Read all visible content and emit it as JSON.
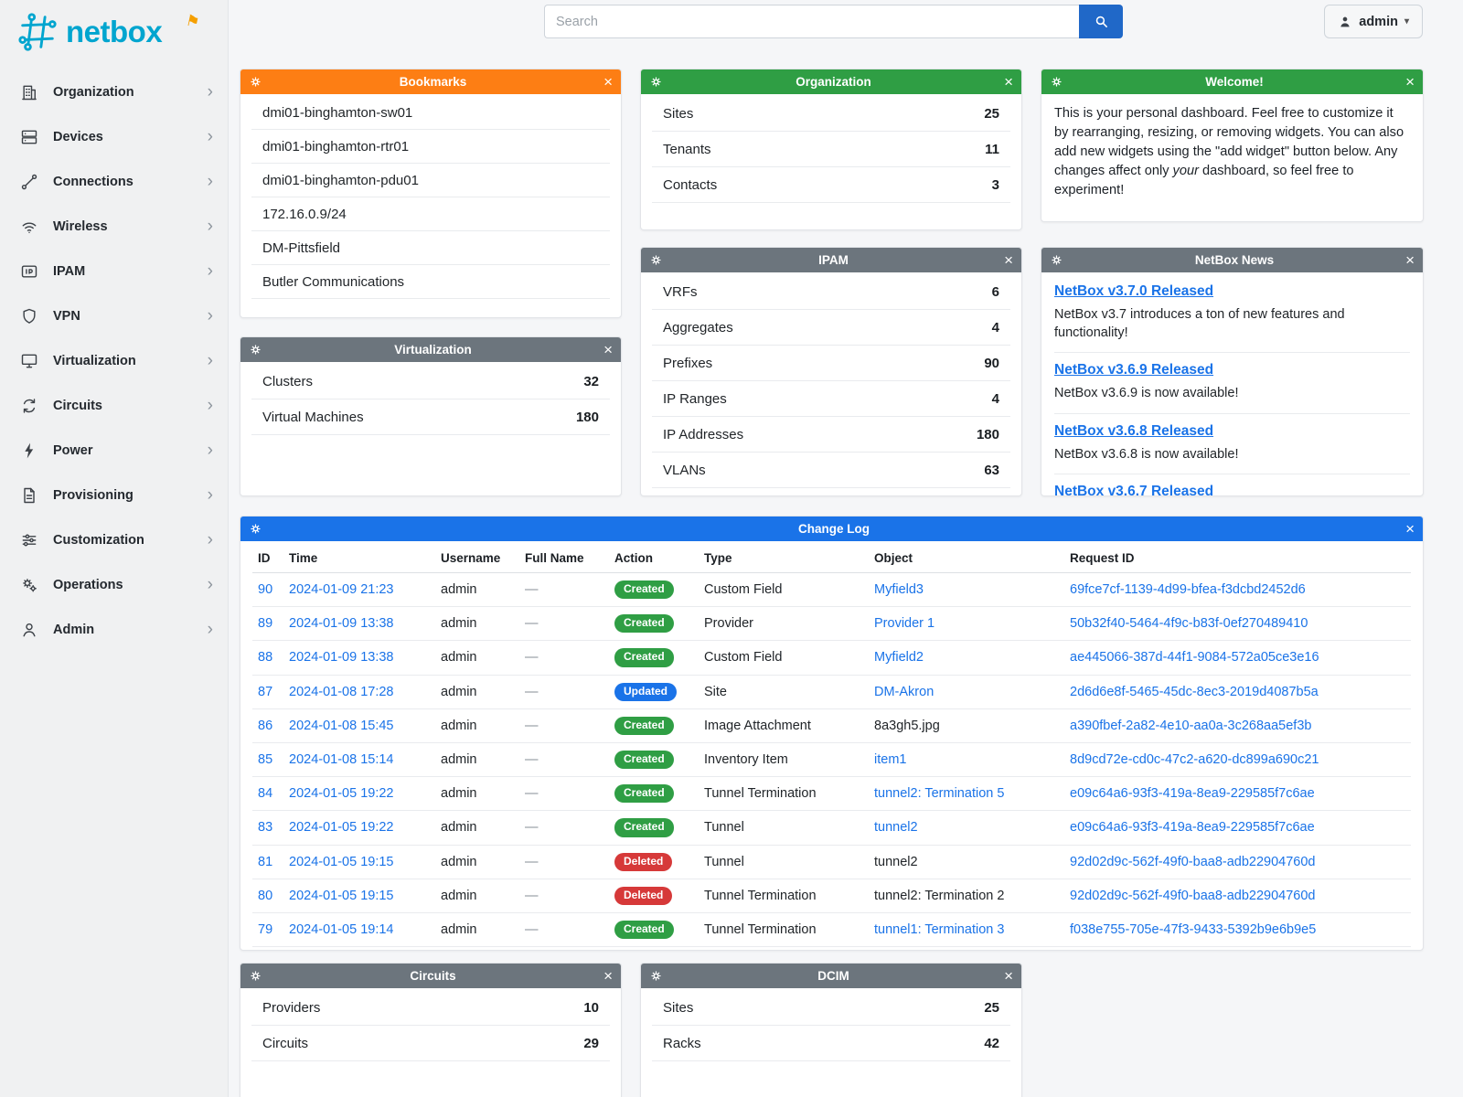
{
  "colors": {
    "brand_teal": "#00a5cf",
    "brand_orange": "#f59f00",
    "header_orange": "#fd7e14",
    "header_green": "#2f9e44",
    "header_gray": "#6c757d",
    "header_blue": "#1a73e8",
    "badge_created": "#2f9e44",
    "badge_updated": "#1a73e8",
    "badge_deleted": "#d63939",
    "link": "#1a73e8",
    "search_button": "#2068c8"
  },
  "brand": {
    "name": "netbox"
  },
  "topbar": {
    "search_placeholder": "Search",
    "user_label": "admin"
  },
  "sidebar": {
    "items": [
      {
        "label": "Organization",
        "icon": "building-icon"
      },
      {
        "label": "Devices",
        "icon": "server-icon"
      },
      {
        "label": "Connections",
        "icon": "cable-icon"
      },
      {
        "label": "Wireless",
        "icon": "wifi-icon"
      },
      {
        "label": "IPAM",
        "icon": "ip-card-icon"
      },
      {
        "label": "VPN",
        "icon": "vpn-shield-icon"
      },
      {
        "label": "Virtualization",
        "icon": "monitor-icon"
      },
      {
        "label": "Circuits",
        "icon": "loop-icon"
      },
      {
        "label": "Power",
        "icon": "lightning-icon"
      },
      {
        "label": "Provisioning",
        "icon": "document-icon"
      },
      {
        "label": "Customization",
        "icon": "sliders-icon"
      },
      {
        "label": "Operations",
        "icon": "gears-icon"
      },
      {
        "label": "Admin",
        "icon": "user-icon"
      }
    ]
  },
  "widgets": {
    "bookmarks": {
      "title": "Bookmarks",
      "items": [
        "dmi01-binghamton-sw01",
        "dmi01-binghamton-rtr01",
        "dmi01-binghamton-pdu01",
        "172.16.0.9/24",
        "DM-Pittsfield",
        "Butler Communications"
      ]
    },
    "organization": {
      "title": "Organization",
      "rows": [
        {
          "label": "Sites",
          "value": "25"
        },
        {
          "label": "Tenants",
          "value": "11"
        },
        {
          "label": "Contacts",
          "value": "3"
        }
      ]
    },
    "welcome": {
      "title": "Welcome!",
      "text_1": "This is your personal dashboard. Feel free to customize it by rearranging, resizing, or removing widgets. You can also add new widgets using the \"add widget\" button below. Any changes affect only ",
      "text_italic": "your",
      "text_2": " dashboard, so feel free to experiment!"
    },
    "virtualization": {
      "title": "Virtualization",
      "rows": [
        {
          "label": "Clusters",
          "value": "32"
        },
        {
          "label": "Virtual Machines",
          "value": "180"
        }
      ]
    },
    "ipam": {
      "title": "IPAM",
      "rows": [
        {
          "label": "VRFs",
          "value": "6"
        },
        {
          "label": "Aggregates",
          "value": "4"
        },
        {
          "label": "Prefixes",
          "value": "90"
        },
        {
          "label": "IP Ranges",
          "value": "4"
        },
        {
          "label": "IP Addresses",
          "value": "180"
        },
        {
          "label": "VLANs",
          "value": "63"
        }
      ]
    },
    "news": {
      "title": "NetBox News",
      "items": [
        {
          "headline": "NetBox v3.7.0 Released",
          "text": "NetBox v3.7 introduces a ton of new features and functionality!"
        },
        {
          "headline": "NetBox v3.6.9 Released",
          "text": "NetBox v3.6.9 is now available!"
        },
        {
          "headline": "NetBox v3.6.8 Released",
          "text": "NetBox v3.6.8 is now available!"
        },
        {
          "headline": "NetBox v3.6.7 Released",
          "text": ""
        }
      ]
    },
    "circuits": {
      "title": "Circuits",
      "rows": [
        {
          "label": "Providers",
          "value": "10"
        },
        {
          "label": "Circuits",
          "value": "29"
        }
      ]
    },
    "dcim": {
      "title": "DCIM",
      "rows": [
        {
          "label": "Sites",
          "value": "25"
        },
        {
          "label": "Racks",
          "value": "42"
        }
      ]
    }
  },
  "changelog": {
    "title": "Change Log",
    "columns": [
      "ID",
      "Time",
      "Username",
      "Full Name",
      "Action",
      "Type",
      "Object",
      "Request ID"
    ],
    "rows": [
      {
        "id": "90",
        "time": "2024-01-09 21:23",
        "username": "admin",
        "full_name": "—",
        "action": "Created",
        "type": "Custom Field",
        "object": "Myfield3",
        "object_link": true,
        "request_id": "69fce7cf-1139-4d99-bfea-f3dcbd2452d6"
      },
      {
        "id": "89",
        "time": "2024-01-09 13:38",
        "username": "admin",
        "full_name": "—",
        "action": "Created",
        "type": "Provider",
        "object": "Provider 1",
        "object_link": true,
        "request_id": "50b32f40-5464-4f9c-b83f-0ef270489410"
      },
      {
        "id": "88",
        "time": "2024-01-09 13:38",
        "username": "admin",
        "full_name": "—",
        "action": "Created",
        "type": "Custom Field",
        "object": "Myfield2",
        "object_link": true,
        "request_id": "ae445066-387d-44f1-9084-572a05ce3e16"
      },
      {
        "id": "87",
        "time": "2024-01-08 17:28",
        "username": "admin",
        "full_name": "—",
        "action": "Updated",
        "type": "Site",
        "object": "DM-Akron",
        "object_link": true,
        "request_id": "2d6d6e8f-5465-45dc-8ec3-2019d4087b5a"
      },
      {
        "id": "86",
        "time": "2024-01-08 15:45",
        "username": "admin",
        "full_name": "—",
        "action": "Created",
        "type": "Image Attachment",
        "object": "8a3gh5.jpg",
        "object_link": false,
        "request_id": "a390fbef-2a82-4e10-aa0a-3c268aa5ef3b"
      },
      {
        "id": "85",
        "time": "2024-01-08 15:14",
        "username": "admin",
        "full_name": "—",
        "action": "Created",
        "type": "Inventory Item",
        "object": "item1",
        "object_link": true,
        "request_id": "8d9cd72e-cd0c-47c2-a620-dc899a690c21"
      },
      {
        "id": "84",
        "time": "2024-01-05 19:22",
        "username": "admin",
        "full_name": "—",
        "action": "Created",
        "type": "Tunnel Termination",
        "object": "tunnel2: Termination 5",
        "object_link": true,
        "request_id": "e09c64a6-93f3-419a-8ea9-229585f7c6ae"
      },
      {
        "id": "83",
        "time": "2024-01-05 19:22",
        "username": "admin",
        "full_name": "—",
        "action": "Created",
        "type": "Tunnel",
        "object": "tunnel2",
        "object_link": true,
        "request_id": "e09c64a6-93f3-419a-8ea9-229585f7c6ae"
      },
      {
        "id": "81",
        "time": "2024-01-05 19:15",
        "username": "admin",
        "full_name": "—",
        "action": "Deleted",
        "type": "Tunnel",
        "object": "tunnel2",
        "object_link": false,
        "request_id": "92d02d9c-562f-49f0-baa8-adb22904760d"
      },
      {
        "id": "80",
        "time": "2024-01-05 19:15",
        "username": "admin",
        "full_name": "—",
        "action": "Deleted",
        "type": "Tunnel Termination",
        "object": "tunnel2: Termination 2",
        "object_link": false,
        "request_id": "92d02d9c-562f-49f0-baa8-adb22904760d"
      },
      {
        "id": "79",
        "time": "2024-01-05 19:14",
        "username": "admin",
        "full_name": "—",
        "action": "Created",
        "type": "Tunnel Termination",
        "object": "tunnel1: Termination 3",
        "object_link": true,
        "request_id": "f038e755-705e-47f3-9433-5392b9e6b9e5"
      }
    ]
  }
}
